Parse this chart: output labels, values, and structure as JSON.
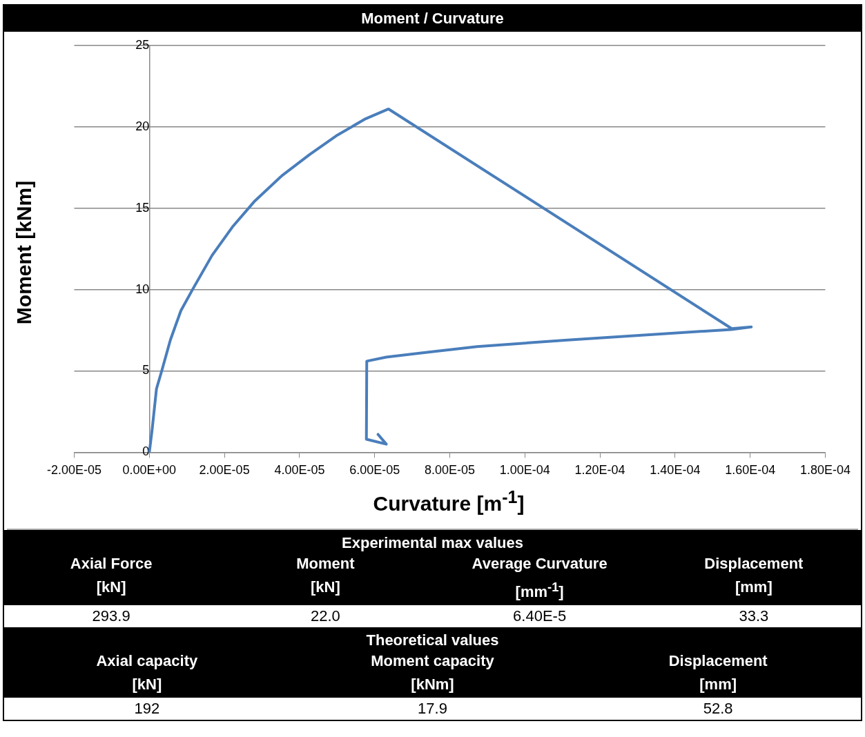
{
  "chart_data": [
    {
      "type": "line",
      "title": "Moment / Curvature",
      "xlabel": "Curvature [m$^{-1}$]",
      "ylabel": "Moment [kNm]",
      "x": [
        0,
        7e-07,
        1.9e-06,
        3.3e-06,
        5.6e-06,
        8.4e-06,
        1.15e-05,
        1.67e-05,
        2.23e-05,
        2.79e-05,
        3.53e-05,
        4.27e-05,
        5.01e-05,
        5.76e-05,
        6.37e-05,
        0.0001551,
        0.0001603,
        0.000155,
        0.0001114,
        8.73e-05,
        7.24e-05,
        6.31e-05,
        5.79e-05,
        5.78e-05,
        6.31e-05,
        6.09e-05
      ],
      "series": [
        {
          "color": "#4a7ebb",
          "values": [
            0,
            1.3,
            3.9,
            5,
            6.9,
            8.7,
            10,
            12.1,
            13.9,
            15.4,
            17,
            18.3,
            19.5,
            20.5,
            21.1,
            7.6,
            7.7,
            7.55,
            6.9,
            6.5,
            6.1,
            5.85,
            5.6,
            0.8,
            0.5,
            1.1
          ]
        }
      ],
      "xlim": [
        -2e-05,
        0.00018
      ],
      "xticks": [
        {
          "value": -2e-05,
          "label": "-2.00E-05"
        },
        {
          "value": 0,
          "label": "0.00E+00"
        },
        {
          "value": 2e-05,
          "label": "2.00E-05"
        },
        {
          "value": 4e-05,
          "label": "4.00E-05"
        },
        {
          "value": 6e-05,
          "label": "6.00E-05"
        },
        {
          "value": 8e-05,
          "label": "8.00E-05"
        },
        {
          "value": 0.0001,
          "label": "1.00E-04"
        },
        {
          "value": 0.00012,
          "label": "1.20E-04"
        },
        {
          "value": 0.00014,
          "label": "1.40E-04"
        },
        {
          "value": 0.00016,
          "label": "1.60E-04"
        },
        {
          "value": 0.00018,
          "label": "1.80E-04"
        }
      ],
      "ylim": [
        0,
        25
      ],
      "yticks": [
        0,
        5,
        10,
        15,
        20,
        25
      ],
      "grid": "y",
      "line_style": "solid",
      "marker": "none",
      "legend": false
    },
    {
      "type": "other",
      "title": "Experimental max values",
      "annotations": [
        "Axial Force\n[kN]",
        "Moment\n[kN]",
        "Average Curvature\n[mm$^{-1}$]",
        "Displacement\n[mm]",
        "293.9",
        "22.0",
        "6.40E-5",
        "33.3"
      ]
    },
    {
      "type": "other",
      "title": "Theoretical values",
      "annotations": [
        "Axial capacity\n[kN]",
        "Moment capacity\n[kNm]",
        "Displacement\n[mm]",
        "192",
        "17.9",
        "52.8"
      ]
    }
  ]
}
